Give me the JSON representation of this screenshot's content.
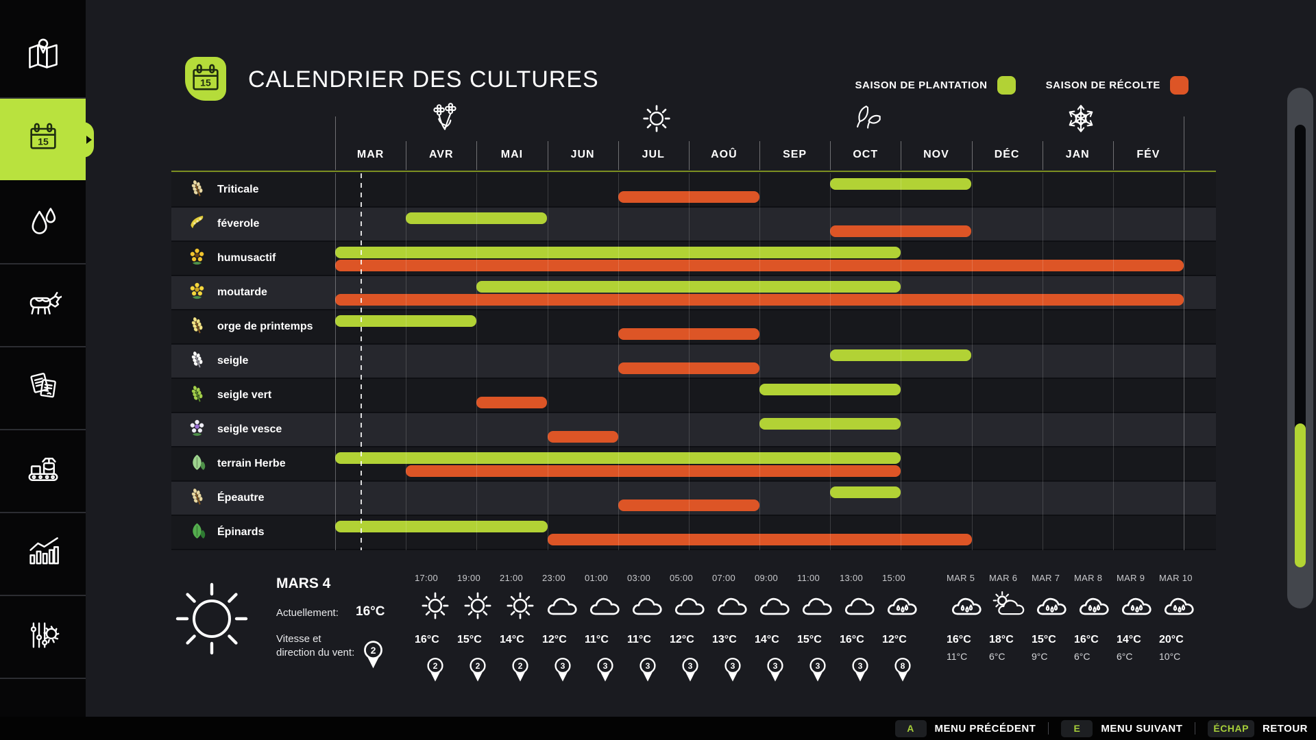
{
  "header": {
    "title": "CALENDRIER DES CULTURES",
    "icon_day": "15"
  },
  "sidebar": {
    "items": [
      {
        "id": "map",
        "icon": "map-icon",
        "active": false
      },
      {
        "id": "calendar",
        "icon": "calendar-icon",
        "active": true
      },
      {
        "id": "precipitation",
        "icon": "water-drops-icon",
        "active": false
      },
      {
        "id": "animals",
        "icon": "cow-icon",
        "active": false
      },
      {
        "id": "contracts",
        "icon": "documents-icon",
        "active": false
      },
      {
        "id": "production",
        "icon": "conveyor-icon",
        "active": false
      },
      {
        "id": "statistics",
        "icon": "bar-chart-icon",
        "active": false
      },
      {
        "id": "settings",
        "icon": "sliders-gear-icon",
        "active": false
      }
    ]
  },
  "chart_data": {
    "type": "gantt",
    "title": "CALENDRIER DES CULTURES",
    "months": [
      "MAR",
      "AVR",
      "MAI",
      "JUN",
      "JUL",
      "AOÛ",
      "SEP",
      "OCT",
      "NOV",
      "DÉC",
      "JAN",
      "FÉV"
    ],
    "season_markers": [
      {
        "name": "spring-flowers-icon",
        "month_center": 1.55
      },
      {
        "name": "summer-sun-icon",
        "month_center": 4.55
      },
      {
        "name": "autumn-leaves-icon",
        "month_center": 7.55
      },
      {
        "name": "winter-snowflake-icon",
        "month_center": 10.55
      }
    ],
    "legend": [
      {
        "label": "SAISON DE PLANTATION",
        "color": "#b2d235"
      },
      {
        "label": "SAISON DE RÉCOLTE",
        "color": "#dd5526"
      }
    ],
    "today_line_month": 0.36,
    "rows": [
      {
        "label": "Triticale",
        "icon": "wheat",
        "icon_color": "#e9d9a4",
        "accent_color": "#8a5a1e",
        "plant": [
          7,
          9
        ],
        "harvest": [
          4,
          6
        ]
      },
      {
        "label": "féverole",
        "icon": "pod",
        "icon_color": "#e4cf3e",
        "accent_color": "#8a5a1e",
        "plant": [
          1,
          3
        ],
        "harvest": [
          7,
          9
        ]
      },
      {
        "label": "humusactif",
        "icon": "flower",
        "icon_color": "#f2c52f",
        "accent_color": "#6b4416",
        "plant": [
          0,
          8
        ],
        "harvest": [
          0,
          12
        ]
      },
      {
        "label": "moutarde",
        "icon": "flower",
        "icon_color": "#f5d73e",
        "accent_color": "#c8a21e",
        "plant": [
          2,
          8
        ],
        "harvest": [
          0,
          12
        ]
      },
      {
        "label": "orge de printemps",
        "icon": "wheat",
        "icon_color": "#f2e386",
        "accent_color": "#8a5a1e",
        "plant": [
          0,
          2
        ],
        "harvest": [
          4,
          6
        ]
      },
      {
        "label": "seigle",
        "icon": "wheat",
        "icon_color": "#ffffff",
        "accent_color": "#9a9aa4",
        "plant": [
          7,
          9
        ],
        "harvest": [
          4,
          6
        ]
      },
      {
        "label": "seigle vert",
        "icon": "wheat",
        "icon_color": "#a4d04c",
        "accent_color": "#5c8f2c",
        "plant": [
          6,
          8
        ],
        "harvest": [
          2,
          3
        ]
      },
      {
        "label": "seigle vesce",
        "icon": "flower",
        "icon_color": "#efeef6",
        "accent_color": "#9a6fd4",
        "plant": [
          6,
          8
        ],
        "harvest": [
          3,
          4
        ]
      },
      {
        "label": "terrain Herbe",
        "icon": "leaf",
        "icon_color": "#9ed48e",
        "accent_color": "#4e9149",
        "plant": [
          0,
          8
        ],
        "harvest": [
          1,
          8
        ]
      },
      {
        "label": "Épeautre",
        "icon": "wheat",
        "icon_color": "#e9d9a4",
        "accent_color": "#8a5a1e",
        "plant": [
          7,
          8
        ],
        "harvest": [
          4,
          6
        ]
      },
      {
        "label": "Épinards",
        "icon": "leaf",
        "icon_color": "#54ae4e",
        "accent_color": "#2e7a32",
        "plant": [
          0,
          3
        ],
        "harvest": [
          3,
          9
        ]
      }
    ]
  },
  "weather": {
    "current": {
      "date": "MARS 4",
      "icon": "sun-icon",
      "now_label": "Actuellement:",
      "now_temp": "16°C",
      "wind_label_line1": "Vitesse et",
      "wind_label_line2": "direction du vent:",
      "wind_value": "2"
    },
    "hourly": [
      {
        "time": "17:00",
        "icon": "sun-icon",
        "temp": "16°C",
        "wind": "2"
      },
      {
        "time": "19:00",
        "icon": "sun-icon",
        "temp": "15°C",
        "wind": "2"
      },
      {
        "time": "21:00",
        "icon": "sun-icon",
        "temp": "14°C",
        "wind": "2"
      },
      {
        "time": "23:00",
        "icon": "cloud-icon",
        "temp": "12°C",
        "wind": "3"
      },
      {
        "time": "01:00",
        "icon": "cloud-icon",
        "temp": "11°C",
        "wind": "3"
      },
      {
        "time": "03:00",
        "icon": "cloud-icon",
        "temp": "11°C",
        "wind": "3"
      },
      {
        "time": "05:00",
        "icon": "cloud-icon",
        "temp": "12°C",
        "wind": "3"
      },
      {
        "time": "07:00",
        "icon": "cloud-icon",
        "temp": "13°C",
        "wind": "3"
      },
      {
        "time": "09:00",
        "icon": "cloud-icon",
        "temp": "14°C",
        "wind": "3"
      },
      {
        "time": "11:00",
        "icon": "cloud-icon",
        "temp": "15°C",
        "wind": "3"
      },
      {
        "time": "13:00",
        "icon": "cloud-icon",
        "temp": "16°C",
        "wind": "3"
      },
      {
        "time": "15:00",
        "icon": "rain-icon",
        "temp": "12°C",
        "wind": "8"
      }
    ],
    "daily": [
      {
        "date": "MAR 5",
        "icon": "rain-icon",
        "high": "16°C",
        "low": "11°C"
      },
      {
        "date": "MAR 6",
        "icon": "sun-cloud-icon",
        "high": "18°C",
        "low": "6°C"
      },
      {
        "date": "MAR 7",
        "icon": "rain-icon",
        "high": "15°C",
        "low": "9°C"
      },
      {
        "date": "MAR 8",
        "icon": "rain-icon",
        "high": "16°C",
        "low": "6°C"
      },
      {
        "date": "MAR 9",
        "icon": "rain-icon",
        "high": "14°C",
        "low": "6°C"
      },
      {
        "date": "MAR 10",
        "icon": "rain-icon",
        "high": "20°C",
        "low": "10°C"
      }
    ]
  },
  "footer": {
    "items": [
      {
        "key": "A",
        "label": "MENU PRÉCÉDENT"
      },
      {
        "key": "E",
        "label": "MENU SUIVANT"
      },
      {
        "key": "ÉCHAP",
        "label": "RETOUR"
      }
    ]
  }
}
